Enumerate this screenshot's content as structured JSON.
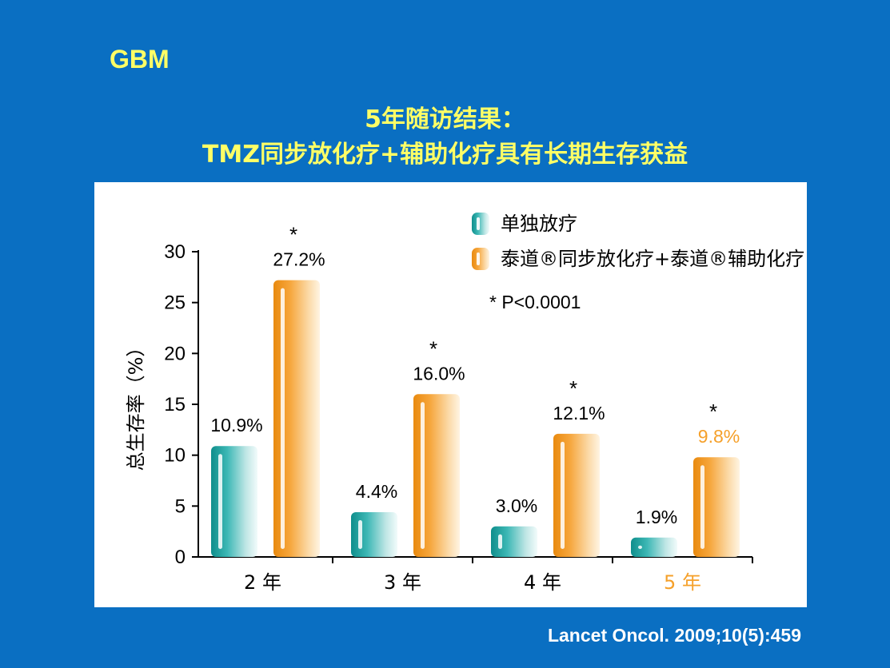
{
  "tag": "GBM",
  "title": {
    "line1": "5年随访结果：",
    "line2": "TMZ同步放化疗+辅助化疗具有长期生存获益"
  },
  "source": "Lancet Oncol. 2009;10(5):459",
  "colors": {
    "background": "#0a6fc2",
    "title": "#ffff66",
    "teal": "#1aa3a0",
    "orange": "#f5a02a",
    "highlight": "#f5a02a"
  },
  "chart_data": {
    "type": "bar",
    "ylabel": "总生存率（%）",
    "ylim": [
      0,
      30
    ],
    "yticks": [
      0,
      5,
      10,
      15,
      20,
      25,
      30
    ],
    "categories": [
      "2 年",
      "3 年",
      "4 年",
      "5 年"
    ],
    "highlight_category": "5 年",
    "series": [
      {
        "name": "单独放疗",
        "color": "#1aa3a0",
        "values": [
          10.9,
          4.4,
          3.0,
          1.9
        ],
        "labels": [
          "10.9%",
          "4.4%",
          "3.0%",
          "1.9%"
        ]
      },
      {
        "name": "泰道®同步放化疗+泰道®辅助化疗",
        "color": "#f5a02a",
        "values": [
          27.2,
          16.0,
          12.1,
          9.8
        ],
        "labels": [
          "27.2%",
          "16.0%",
          "12.1%",
          "9.8%"
        ],
        "significance": [
          "*",
          "*",
          "*",
          "*"
        ]
      }
    ],
    "legend_position": "top-right",
    "annotation": "* P<0.0001",
    "grid": false
  }
}
